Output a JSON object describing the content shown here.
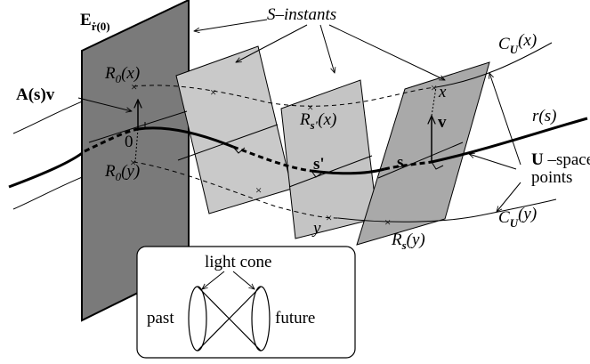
{
  "labels": {
    "e_base": "E",
    "e_sub": "ṙ(0)",
    "s_instants": "S–instants",
    "c_u_x": "C",
    "c_u_x_sub": "U",
    "c_u_x_arg": "(x)",
    "c_u_y": "C",
    "c_u_y_sub": "U",
    "c_u_y_arg": "(y)",
    "r0x_base": "R",
    "r0x_sub": "0",
    "r0x_arg": "(x)",
    "r0y_base": "R",
    "r0y_sub": "0",
    "r0y_arg": "(y)",
    "asv": "A(s)v",
    "zero": "0",
    "rsp_base": "R",
    "rsp_sub": "s'",
    "rsp_arg": "(x)",
    "sprime": "s'",
    "s": "s",
    "v": "v",
    "x": "x",
    "y": "y",
    "rs_base": "R",
    "rs_sub": "s",
    "rs_arg": "(y)",
    "rs_curve_base": "r",
    "rs_curve_arg": "(s)",
    "u_space_1": "U",
    "u_space_2": " –space",
    "u_space_3": "points"
  },
  "inset": {
    "title": "light cone",
    "left": "past",
    "right": "future"
  }
}
